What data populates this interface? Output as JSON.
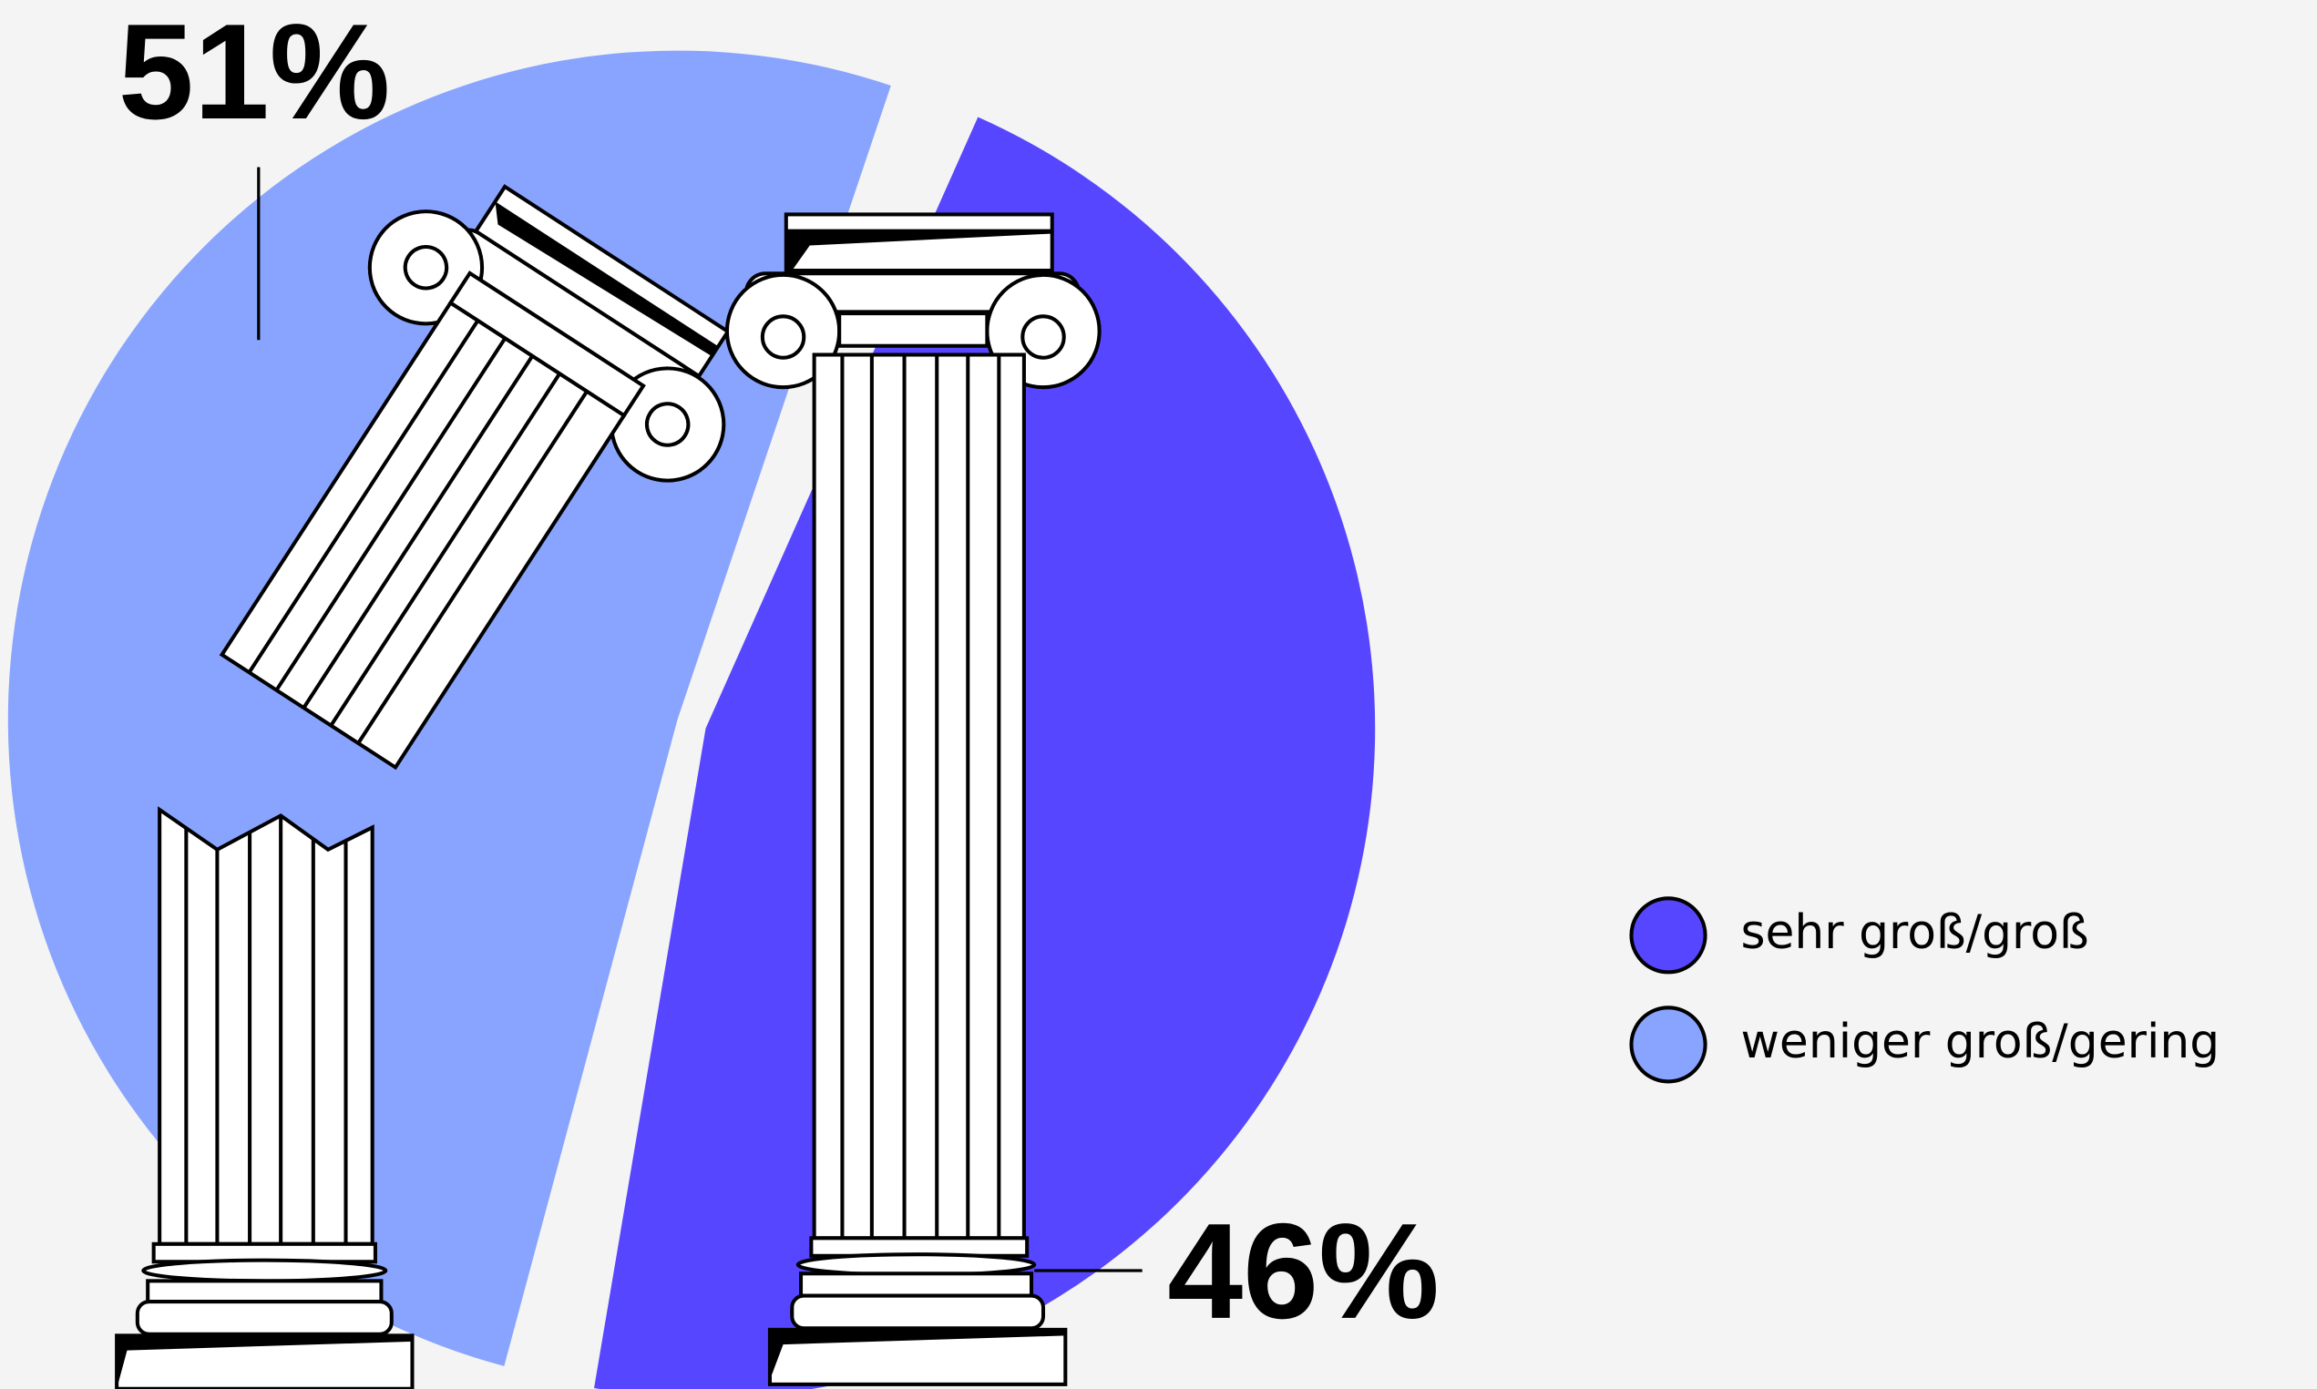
{
  "chart_data": {
    "type": "pie",
    "categories": [
      "sehr groß/groß",
      "weniger groß/gering"
    ],
    "values": [
      46,
      51
    ],
    "value_labels": [
      "46%",
      "51%"
    ],
    "colors": [
      "#5746ff",
      "#88a4ff"
    ],
    "legend": "right"
  }
}
